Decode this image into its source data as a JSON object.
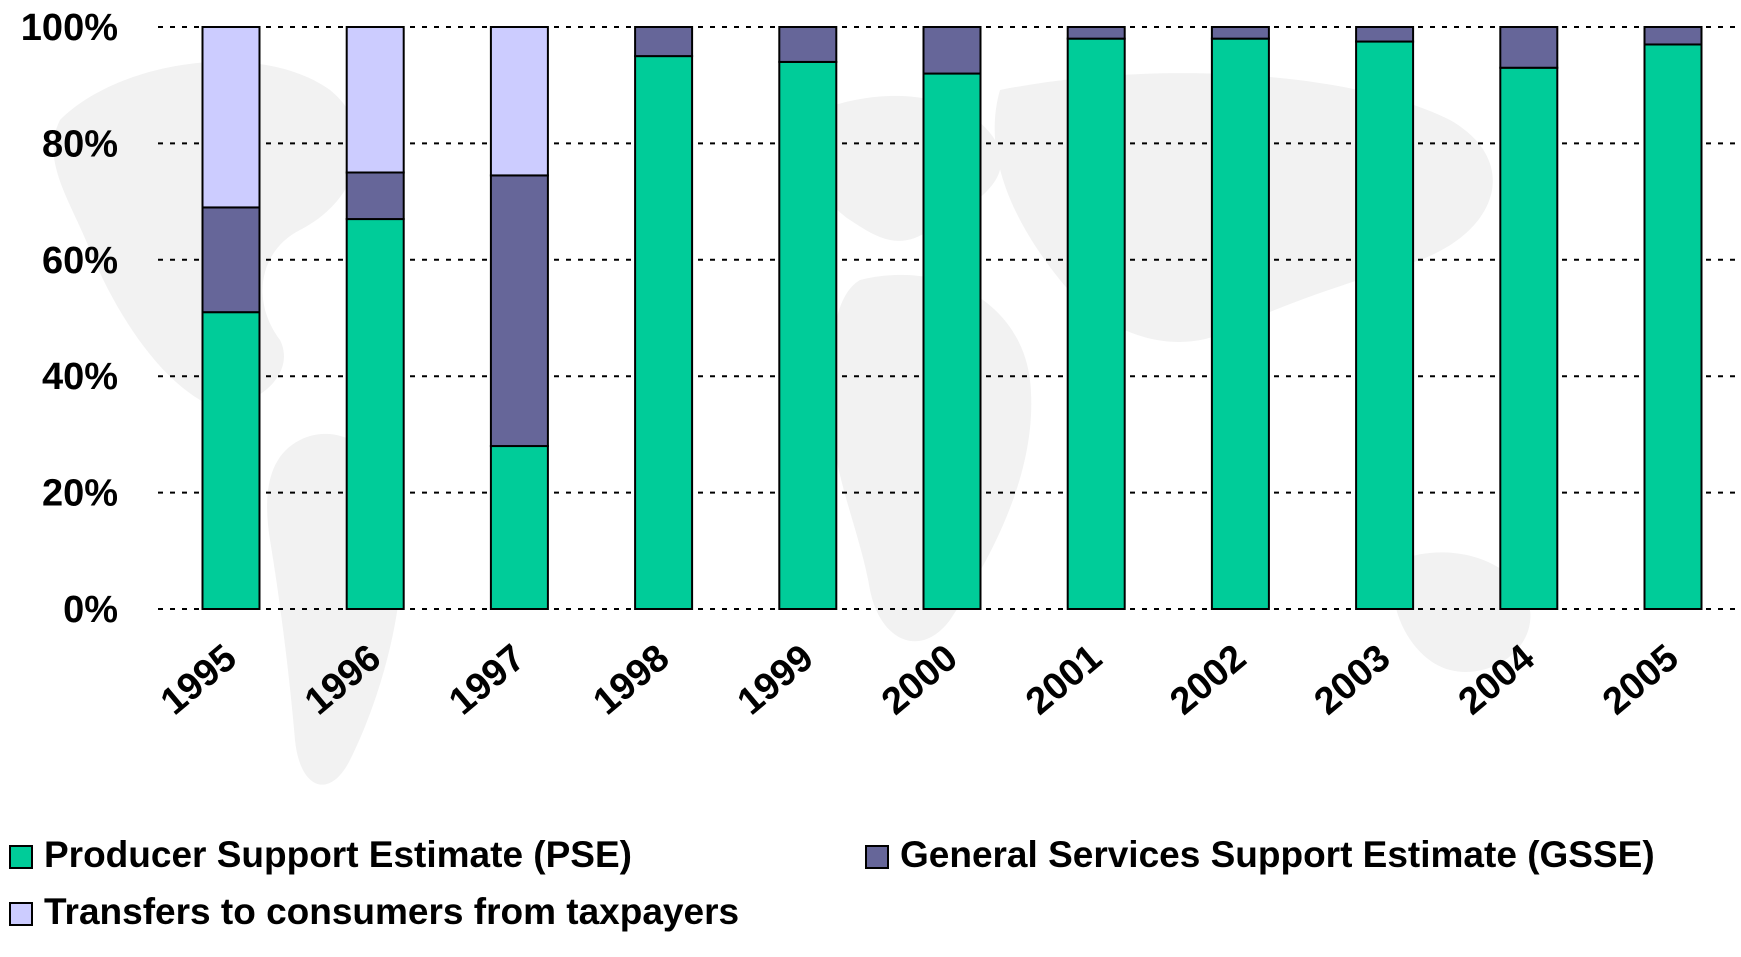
{
  "chart_data": {
    "type": "bar",
    "stacked": true,
    "percent": true,
    "categories": [
      "1995",
      "1996",
      "1997",
      "1998",
      "1999",
      "2000",
      "2001",
      "2002",
      "2003",
      "2004",
      "2005"
    ],
    "series": [
      {
        "name": "Producer Support Estimate (PSE)",
        "color": "#00cc99",
        "values": [
          51,
          67,
          28,
          95,
          94,
          92,
          98,
          98,
          97.5,
          93,
          97
        ]
      },
      {
        "name": "General Services Support Estimate (GSSE)",
        "color": "#666699",
        "values": [
          18,
          8,
          46.5,
          5,
          6,
          8,
          2,
          2,
          2.5,
          7,
          3
        ]
      },
      {
        "name": "Transfers to consumers from taxpayers",
        "color": "#ccccff",
        "values": [
          31,
          25,
          25.5,
          0,
          0,
          0,
          0,
          0,
          0,
          0,
          0
        ]
      }
    ],
    "y_ticks": [
      "0%",
      "20%",
      "40%",
      "60%",
      "80%",
      "100%"
    ],
    "ylim": [
      0,
      100
    ],
    "grid": true,
    "legend_position": "bottom"
  }
}
